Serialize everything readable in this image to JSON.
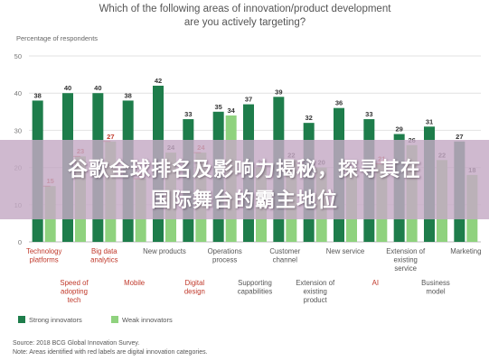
{
  "chart_data": {
    "type": "bar",
    "title": "Which of the following areas of innovation/product development are you actively targeting?",
    "ylabel": "Percentage of respondents",
    "ylim": [
      0,
      50
    ],
    "yticks": [
      0,
      10,
      20,
      30,
      40,
      50
    ],
    "grid": true,
    "categories": [
      "Technology platforms",
      "Speed of adopting tech",
      "Big data analytics",
      "Mobile",
      "New products",
      "Digital design",
      "Operations process",
      "Supporting capabilities",
      "Customer channel",
      "Extension of existing product",
      "New service",
      "AI",
      "Extension of existing service",
      "Business model",
      "Marketing"
    ],
    "red_label_categories": [
      "Technology platforms",
      "Speed of adopting tech",
      "Big data analytics",
      "Mobile",
      "Digital design",
      "AI"
    ],
    "series": [
      {
        "name": "Strong innovators",
        "color": "#1e7d4b",
        "values": [
          38,
          40,
          40,
          38,
          42,
          33,
          35,
          37,
          39,
          32,
          36,
          33,
          29,
          31,
          27
        ]
      },
      {
        "name": "Weak innovators",
        "color": "#8fd27e",
        "values": [
          15,
          23,
          27,
          17,
          24,
          24,
          34,
          20,
          22,
          20,
          20,
          21,
          26,
          22,
          18
        ]
      }
    ],
    "annotation_colors": {
      "red": "#c0392b"
    },
    "legend": "bottom-left",
    "source": "Source: 2018 BCG Global Innovation Survey.",
    "note": "Note: Areas identified with red labels are digital innovation categories."
  },
  "banner": {
    "line1": "谷歌全球排名及影响力揭秘，探寻其在",
    "line2": "国际舞台的霸主地位"
  }
}
